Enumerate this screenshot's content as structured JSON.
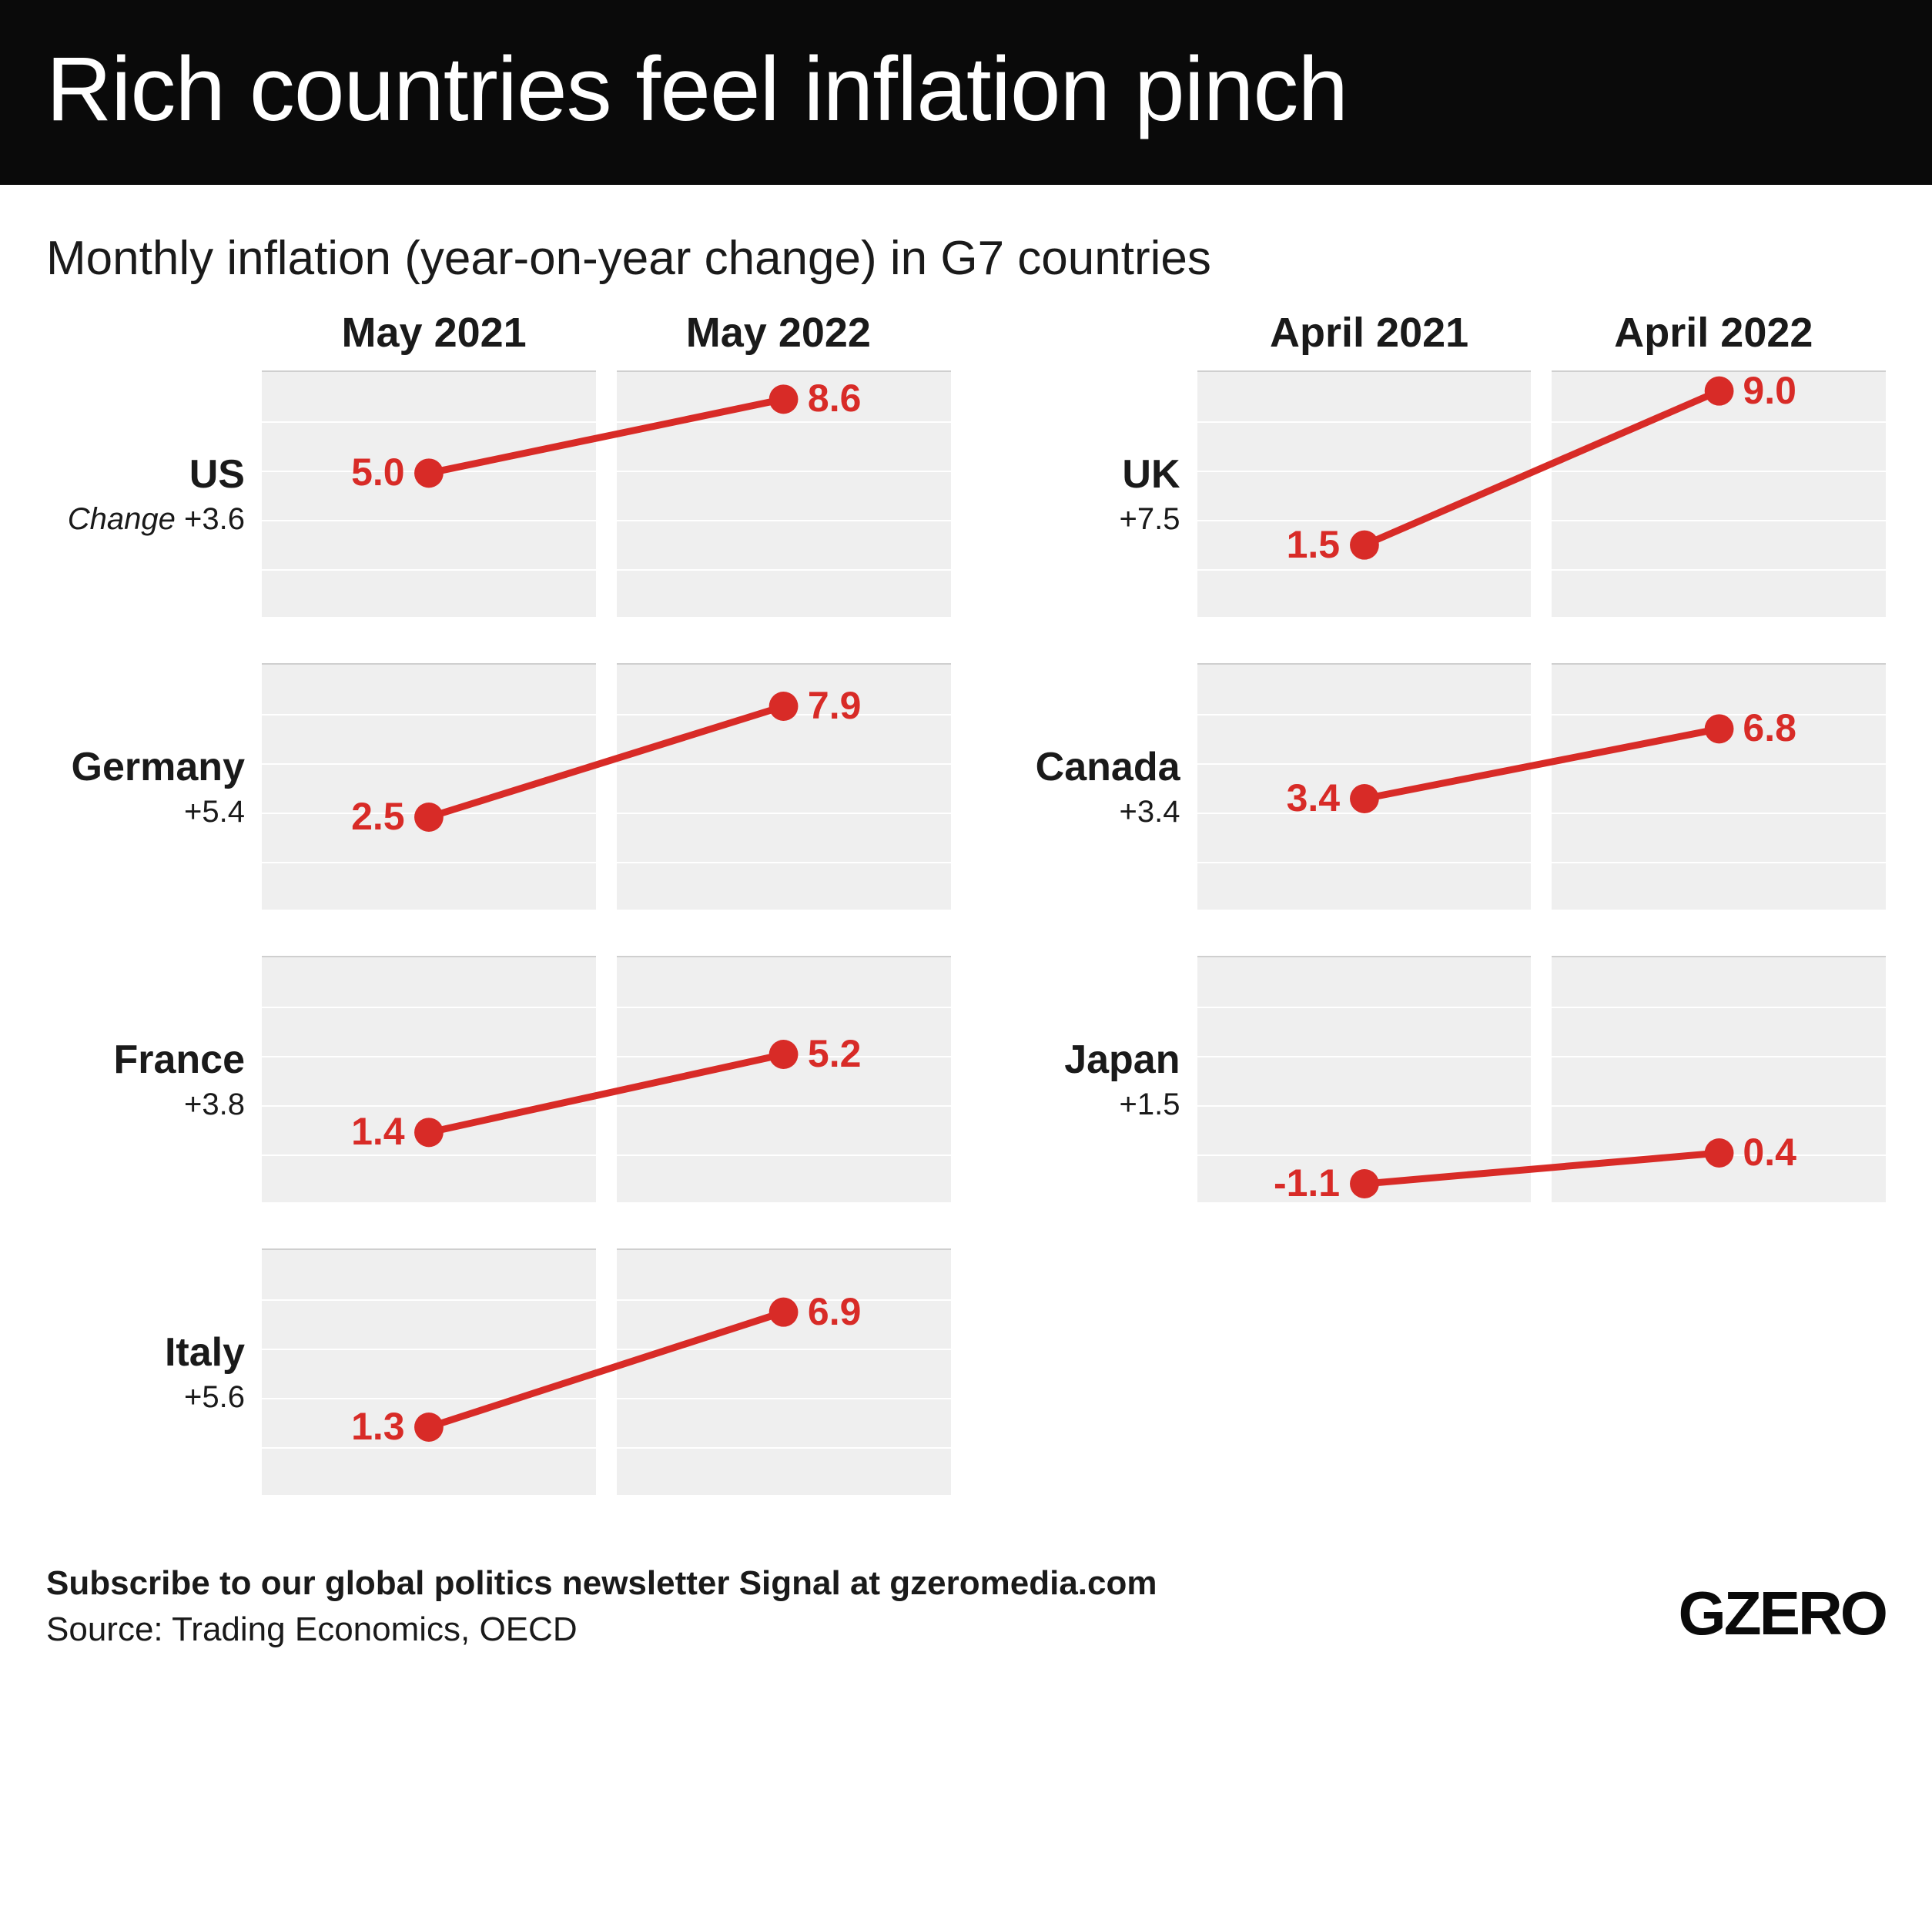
{
  "header": {
    "title": "Rich countries feel inflation pinch"
  },
  "subtitle": "Monthly inflation (year-on-year change) in G7 countries",
  "chart": {
    "type": "slope-line-small-multiples",
    "ylim": [
      -2,
      10
    ],
    "grid_rows": 5,
    "point_color": "#d82b27",
    "line_color": "#d82b27",
    "line_width": 9,
    "point_radius": 19,
    "bg_color": "#efefef",
    "grid_color": "#ffffff",
    "value_label_color": "#d82b27",
    "value_label_fontsize": 50,
    "left_column": {
      "year_start": "May 2021",
      "year_end": "May 2022",
      "countries": [
        {
          "name": "US",
          "change_prefix": "Change ",
          "change": "+3.6",
          "start": 5.0,
          "end": 8.6,
          "start_label": "5.0",
          "end_label": "8.6"
        },
        {
          "name": "Germany",
          "change_prefix": "",
          "change": "+5.4",
          "start": 2.5,
          "end": 7.9,
          "start_label": "2.5",
          "end_label": "7.9"
        },
        {
          "name": "France",
          "change_prefix": "",
          "change": "+3.8",
          "start": 1.4,
          "end": 5.2,
          "start_label": "1.4",
          "end_label": "5.2"
        },
        {
          "name": "Italy",
          "change_prefix": "",
          "change": "+5.6",
          "start": 1.3,
          "end": 6.9,
          "start_label": "1.3",
          "end_label": "6.9"
        }
      ]
    },
    "right_column": {
      "year_start": "April 2021",
      "year_end": "April 2022",
      "countries": [
        {
          "name": "UK",
          "change_prefix": "",
          "change": "+7.5",
          "start": 1.5,
          "end": 9.0,
          "start_label": "1.5",
          "end_label": "9.0"
        },
        {
          "name": "Canada",
          "change_prefix": "",
          "change": "+3.4",
          "start": 3.4,
          "end": 6.8,
          "start_label": "3.4",
          "end_label": "6.8"
        },
        {
          "name": "Japan",
          "change_prefix": "",
          "change": "+1.5",
          "start": -1.1,
          "end": 0.4,
          "start_label": "-1.1",
          "end_label": "0.4"
        }
      ]
    }
  },
  "footer": {
    "subscribe": "Subscribe to our global politics newsletter Signal at gzeromedia.com",
    "source": "Source: Trading Economics, OECD",
    "logo": "GZERO"
  }
}
